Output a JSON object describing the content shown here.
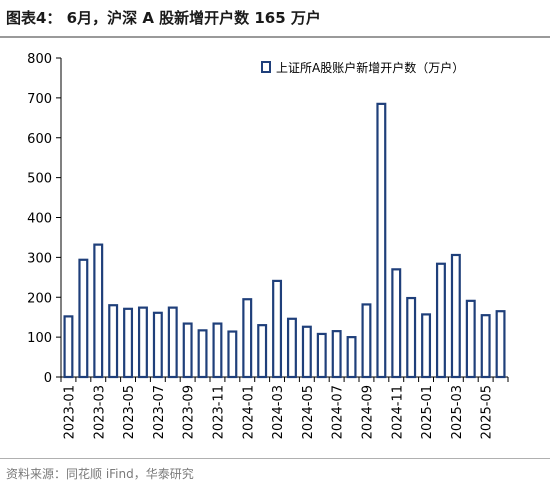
{
  "header": {
    "title": "图表4：  6月，沪深 A 股新增开户数 165 万户"
  },
  "footer": {
    "source": "资料来源：同花顺 iFind，华泰研究"
  },
  "colors": {
    "bar_fill": "#ffffff",
    "bar_stroke": "#1f3f7a",
    "axis": "#000000"
  },
  "chart_data": {
    "type": "bar",
    "title": "图表4：  6月，沪深 A 股新增开户数 165 万户",
    "xlabel": "",
    "ylabel": "",
    "ylim": [
      0,
      800
    ],
    "yticks": [
      0,
      100,
      200,
      300,
      400,
      500,
      600,
      700,
      800
    ],
    "grid": false,
    "legend_position": "top-right",
    "categories": [
      "2023-01",
      "2023-02",
      "2023-03",
      "2023-04",
      "2023-05",
      "2023-06",
      "2023-07",
      "2023-08",
      "2023-09",
      "2023-10",
      "2023-11",
      "2023-12",
      "2024-01",
      "2024-02",
      "2024-03",
      "2024-04",
      "2024-05",
      "2024-06",
      "2024-07",
      "2024-08",
      "2024-09",
      "2024-10",
      "2024-11",
      "2024-12",
      "2025-01",
      "2025-02",
      "2025-03",
      "2025-04",
      "2025-05",
      "2025-06"
    ],
    "tick_labels": [
      "2023-01",
      "2023-03",
      "2023-05",
      "2023-07",
      "2023-09",
      "2023-11",
      "2024-01",
      "2024-03",
      "2024-05",
      "2024-07",
      "2024-09",
      "2024-11",
      "2025-01",
      "2025-03",
      "2025-05"
    ],
    "series": [
      {
        "name": "上证所A股账户新增开户数（万户）",
        "values": [
          152,
          294,
          332,
          180,
          171,
          174,
          161,
          174,
          134,
          117,
          134,
          114,
          195,
          130,
          241,
          146,
          126,
          108,
          115,
          100,
          182,
          685,
          270,
          198,
          157,
          284,
          306,
          191,
          155,
          165
        ]
      }
    ]
  }
}
